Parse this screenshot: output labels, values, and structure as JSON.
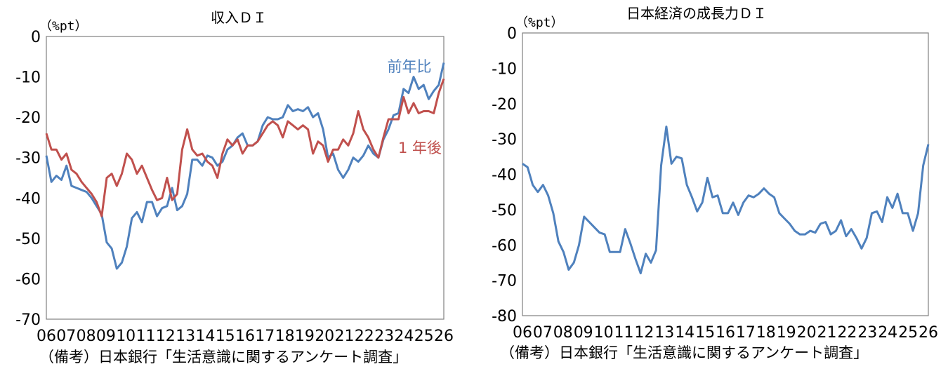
{
  "chart_data": [
    {
      "type": "line",
      "title": "収入ＤＩ",
      "unit": "（%pt）",
      "source": "（備考）日本銀行「生活意識に関するアンケート調査」",
      "ylim": [
        -70,
        0
      ],
      "yticks": [
        "0",
        "-10",
        "-20",
        "-30",
        "-40",
        "-50",
        "-60",
        "-70"
      ],
      "xticks": [
        "06",
        "07",
        "08",
        "09",
        "10",
        "11",
        "12",
        "13",
        "14",
        "15",
        "16",
        "17",
        "18",
        "19",
        "20",
        "21",
        "22",
        "23",
        "24",
        "25",
        "26"
      ],
      "grid": false,
      "series": [
        {
          "name": "前年比",
          "color": "#4f81bd",
          "values": [
            -29.5,
            -36,
            -34.5,
            -35.5,
            -32,
            -37,
            -37.5,
            -38,
            -38.5,
            -40,
            -42,
            -44,
            -51,
            -52.5,
            -57.5,
            -56,
            -52,
            -45,
            -43.5,
            -46,
            -41,
            -41,
            -44.5,
            -42.5,
            -42,
            -37.5,
            -43,
            -42,
            -39,
            -30.5,
            -30.5,
            -32,
            -29.5,
            -30,
            -32,
            -31,
            -28,
            -27,
            -25,
            -24,
            -27,
            -27,
            -26,
            -22,
            -20,
            -20.5,
            -20.5,
            -20,
            -17,
            -18.5,
            -18,
            -18.5,
            -17.5,
            -20,
            -19,
            -23,
            -30,
            -29,
            -33,
            -35,
            -33,
            -30,
            -31,
            -29.5,
            -27,
            -29,
            -30,
            -25.5,
            -23,
            -19.5,
            -19,
            -13,
            -14,
            -10,
            -13,
            -12,
            -15.5,
            -13.5,
            -12,
            -6.5
          ]
        },
        {
          "name": "1 年後",
          "color": "#c0504d",
          "values": [
            -24,
            -28,
            -28,
            -30.5,
            -29,
            -33,
            -34,
            -36,
            -37.5,
            -39,
            -41,
            -44.5,
            -35,
            -34,
            -37,
            -34,
            -29,
            -30.5,
            -34,
            -32,
            -35,
            -38,
            -40.5,
            -40,
            -35,
            -40.5,
            -39,
            -28,
            -23,
            -28,
            -29.5,
            -29,
            -31,
            -32,
            -35,
            -29,
            -25.5,
            -27,
            -25.5,
            -29,
            -27,
            -27,
            -26,
            -24,
            -22,
            -21,
            -22,
            -25,
            -21,
            -22,
            -23,
            -22,
            -23,
            -29,
            -26,
            -27,
            -31,
            -28,
            -28,
            -25.5,
            -27,
            -24,
            -18.5,
            -23,
            -25,
            -28,
            -30,
            -25,
            -20.5,
            -20.5,
            -20.5,
            -15,
            -19,
            -16.5,
            -19,
            -18.5,
            -18.5,
            -19,
            -14,
            -10.5
          ]
        }
      ]
    },
    {
      "type": "line",
      "title": "日本経済の成長力ＤＩ",
      "unit": "（%pt）",
      "source": "（備考）日本銀行「生活意識に関するアンケート調査」",
      "ylim": [
        -80,
        0
      ],
      "yticks": [
        "0",
        "-10",
        "-20",
        "-30",
        "-40",
        "-50",
        "-60",
        "-70",
        "-80"
      ],
      "xticks": [
        "06",
        "07",
        "08",
        "09",
        "10",
        "11",
        "12",
        "13",
        "14",
        "15",
        "16",
        "17",
        "18",
        "19",
        "20",
        "21",
        "22",
        "23",
        "24",
        "25",
        "26"
      ],
      "grid": false,
      "series": [
        {
          "name": "",
          "color": "#4f81bd",
          "values": [
            -37,
            -38,
            -43,
            -45,
            -43,
            -46,
            -51,
            -59,
            -62,
            -67,
            -65,
            -60,
            -52,
            -53.5,
            -55,
            -56.5,
            -57,
            -62,
            -62,
            -62,
            -55.5,
            -59.5,
            -64,
            -68,
            -62.5,
            -65,
            -61.5,
            -37.5,
            -26.5,
            -37,
            -35,
            -35.5,
            -43,
            -46.5,
            -50.5,
            -48,
            -41,
            -46.5,
            -46,
            -51,
            -51,
            -48,
            -51.5,
            -48,
            -46,
            -46.5,
            -45.5,
            -44,
            -45.5,
            -46.5,
            -51,
            -52.5,
            -54,
            -56,
            -57,
            -57,
            -56,
            -56.5,
            -54,
            -53.5,
            -57,
            -56,
            -53,
            -57.5,
            -55.5,
            -58,
            -61,
            -58,
            -51,
            -50.5,
            -53.5,
            -46.5,
            -49.5,
            -45.5,
            -51,
            -51,
            -56,
            -51,
            -37.5,
            -31.5
          ]
        }
      ]
    }
  ]
}
